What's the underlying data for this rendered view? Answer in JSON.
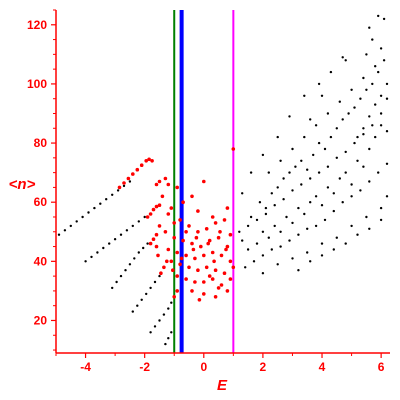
{
  "chart_data": {
    "type": "scatter",
    "xlabel": "E",
    "ylabel": "<n>",
    "xlim": [
      -5,
      6.3
    ],
    "ylim": [
      9,
      125
    ],
    "xticks": [
      -4,
      -2,
      0,
      2,
      4,
      6
    ],
    "yticks": [
      20,
      40,
      60,
      80,
      100,
      120
    ],
    "grid": false,
    "label_color": "#ff0000",
    "axis_color": "#ff0000",
    "vertical_lines": [
      {
        "x": -1.0,
        "color": "#008000",
        "width": 2
      },
      {
        "x": -0.75,
        "color": "#0000ff",
        "width": 4
      },
      {
        "x": 1.0,
        "color": "#ff00ff",
        "width": 2
      }
    ],
    "series": [
      {
        "color": "#000000",
        "marker_size": 1.2,
        "points": [
          [
            -4.9,
            49
          ],
          [
            -4.7,
            50.5
          ],
          [
            -4.5,
            52
          ],
          [
            -4.3,
            53.5
          ],
          [
            -4.1,
            55
          ],
          [
            -3.9,
            56.5
          ],
          [
            -3.7,
            58
          ],
          [
            -3.5,
            59.5
          ],
          [
            -3.3,
            61
          ],
          [
            -3.1,
            62.5
          ],
          [
            -2.9,
            64
          ],
          [
            -2.7,
            65.5
          ],
          [
            -2.5,
            67
          ],
          [
            -4.0,
            40
          ],
          [
            -3.8,
            41.5
          ],
          [
            -3.6,
            43
          ],
          [
            -3.4,
            44.5
          ],
          [
            -3.2,
            46
          ],
          [
            -3.0,
            47.5
          ],
          [
            -2.8,
            49
          ],
          [
            -2.6,
            50.5
          ],
          [
            -2.4,
            52
          ],
          [
            -2.2,
            53.5
          ],
          [
            -2.0,
            55
          ],
          [
            -3.1,
            31
          ],
          [
            -2.95,
            33
          ],
          [
            -2.8,
            35
          ],
          [
            -2.65,
            37
          ],
          [
            -2.5,
            39
          ],
          [
            -2.35,
            41
          ],
          [
            -2.2,
            43
          ],
          [
            -2.05,
            44.5
          ],
          [
            -1.9,
            46
          ],
          [
            -2.4,
            23
          ],
          [
            -2.25,
            25
          ],
          [
            -2.1,
            27
          ],
          [
            -1.95,
            29
          ],
          [
            -1.8,
            31
          ],
          [
            -1.65,
            33
          ],
          [
            -1.5,
            35
          ],
          [
            -1.8,
            16
          ],
          [
            -1.65,
            18
          ],
          [
            -1.5,
            20
          ],
          [
            -1.35,
            22
          ],
          [
            -1.2,
            24
          ],
          [
            -1.1,
            26
          ],
          [
            -1.3,
            12
          ],
          [
            -1.2,
            14
          ],
          [
            -1.1,
            16
          ],
          [
            1.5,
            44
          ],
          [
            1.8,
            46
          ],
          [
            2.0,
            50
          ],
          [
            2.2,
            48
          ],
          [
            2.4,
            52
          ],
          [
            2.6,
            50
          ],
          [
            2.8,
            55
          ],
          [
            3.0,
            53
          ],
          [
            3.2,
            58
          ],
          [
            3.4,
            56
          ],
          [
            3.6,
            60
          ],
          [
            3.8,
            62
          ],
          [
            4.0,
            59
          ],
          [
            4.2,
            65
          ],
          [
            4.4,
            63
          ],
          [
            4.6,
            68
          ],
          [
            4.8,
            70
          ],
          [
            5.0,
            66
          ],
          [
            5.2,
            74
          ],
          [
            5.4,
            72
          ],
          [
            5.6,
            78
          ],
          [
            5.8,
            82
          ],
          [
            6.0,
            86
          ],
          [
            6.2,
            84
          ],
          [
            1.6,
            55
          ],
          [
            1.9,
            60
          ],
          [
            2.1,
            58
          ],
          [
            2.3,
            63
          ],
          [
            2.5,
            65
          ],
          [
            2.7,
            68
          ],
          [
            2.9,
            70
          ],
          [
            3.1,
            72
          ],
          [
            3.3,
            74
          ],
          [
            3.5,
            71
          ],
          [
            3.7,
            76
          ],
          [
            3.9,
            80
          ],
          [
            4.1,
            78
          ],
          [
            4.3,
            82
          ],
          [
            4.5,
            85
          ],
          [
            4.7,
            88
          ],
          [
            4.9,
            90
          ],
          [
            5.1,
            92
          ],
          [
            5.3,
            95
          ],
          [
            5.5,
            98
          ],
          [
            5.7,
            100
          ],
          [
            5.9,
            104
          ],
          [
            6.1,
            108
          ],
          [
            1.4,
            38
          ],
          [
            1.7,
            40
          ],
          [
            2.0,
            42
          ],
          [
            2.3,
            44
          ],
          [
            2.6,
            45
          ],
          [
            2.9,
            47
          ],
          [
            3.2,
            49
          ],
          [
            3.5,
            51
          ],
          [
            3.8,
            52
          ],
          [
            4.1,
            54
          ],
          [
            4.4,
            57
          ],
          [
            4.7,
            60
          ],
          [
            5.0,
            62
          ],
          [
            5.3,
            64
          ],
          [
            5.6,
            67
          ],
          [
            5.9,
            70
          ],
          [
            6.2,
            73
          ],
          [
            2.2,
            70
          ],
          [
            2.6,
            74
          ],
          [
            3.0,
            78
          ],
          [
            3.4,
            82
          ],
          [
            3.8,
            86
          ],
          [
            4.2,
            90
          ],
          [
            4.6,
            94
          ],
          [
            5.0,
            98
          ],
          [
            5.4,
            102
          ],
          [
            5.8,
            106
          ],
          [
            6.0,
            112
          ],
          [
            5.7,
            115
          ],
          [
            5.5,
            110
          ],
          [
            4.8,
            108
          ],
          [
            4.0,
            96
          ],
          [
            3.6,
            88
          ],
          [
            2.0,
            36
          ],
          [
            2.5,
            39
          ],
          [
            3.0,
            41
          ],
          [
            3.5,
            43
          ],
          [
            4.0,
            46
          ],
          [
            4.5,
            48
          ],
          [
            5.0,
            52
          ],
          [
            5.5,
            55
          ],
          [
            6.0,
            58
          ],
          [
            1.2,
            50
          ],
          [
            1.3,
            47
          ],
          [
            1.5,
            52
          ],
          [
            1.8,
            54
          ],
          [
            2.1,
            56
          ],
          [
            2.4,
            59
          ],
          [
            2.7,
            61
          ],
          [
            3.0,
            64
          ],
          [
            3.3,
            66
          ],
          [
            3.6,
            68
          ],
          [
            3.9,
            70
          ],
          [
            4.2,
            72
          ],
          [
            4.5,
            75
          ],
          [
            4.8,
            77
          ],
          [
            5.1,
            80
          ],
          [
            5.4,
            83
          ],
          [
            5.7,
            86
          ],
          [
            6.0,
            90
          ],
          [
            5.9,
            123
          ],
          [
            6.1,
            122
          ],
          [
            5.6,
            119
          ],
          [
            4.7,
            109
          ],
          [
            4.3,
            104
          ],
          [
            3.9,
            100
          ],
          [
            3.4,
            96
          ],
          [
            2.9,
            89
          ],
          [
            2.5,
            82
          ],
          [
            2.0,
            76
          ],
          [
            1.6,
            70
          ],
          [
            1.3,
            63
          ],
          [
            3.2,
            37
          ],
          [
            3.6,
            40
          ],
          [
            4.0,
            42
          ],
          [
            4.4,
            44
          ],
          [
            4.8,
            46
          ],
          [
            5.2,
            49
          ],
          [
            5.6,
            51
          ],
          [
            6.0,
            54
          ],
          [
            6.2,
            62
          ],
          [
            6.2,
            95
          ],
          [
            6.2,
            100
          ],
          [
            6.0,
            96
          ],
          [
            5.8,
            93
          ],
          [
            5.6,
            89
          ],
          [
            5.4,
            85
          ],
          [
            5.2,
            82
          ]
        ]
      },
      {
        "color": "#ff0000",
        "marker_size": 1.8,
        "points": [
          [
            -2.85,
            65
          ],
          [
            -2.7,
            66.5
          ],
          [
            -2.55,
            68
          ],
          [
            -2.4,
            69.5
          ],
          [
            -2.25,
            71
          ],
          [
            -2.1,
            72.5
          ],
          [
            -1.95,
            74
          ],
          [
            -1.85,
            74.5
          ],
          [
            -1.75,
            74
          ],
          [
            -1.9,
            55
          ],
          [
            -1.8,
            56
          ],
          [
            -1.7,
            57.5
          ],
          [
            -1.6,
            58.5
          ],
          [
            -1.5,
            59
          ],
          [
            -1.8,
            46
          ],
          [
            -1.7,
            47.5
          ],
          [
            -1.6,
            49
          ],
          [
            -1.45,
            36
          ],
          [
            -1.35,
            38
          ],
          [
            -1.25,
            40
          ],
          [
            -1.0,
            28
          ],
          [
            -0.9,
            30
          ],
          [
            -1.6,
            66
          ],
          [
            -1.5,
            67
          ],
          [
            -1.3,
            68
          ],
          [
            -1.2,
            66
          ],
          [
            -0.9,
            65
          ],
          [
            0.0,
            67
          ],
          [
            -0.4,
            62
          ],
          [
            -0.7,
            60
          ],
          [
            -1.1,
            58
          ],
          [
            -0.2,
            57
          ],
          [
            0.3,
            55
          ],
          [
            0.8,
            58
          ],
          [
            1.0,
            78
          ],
          [
            -1.4,
            62
          ],
          [
            -1.2,
            56
          ],
          [
            -0.8,
            54
          ],
          [
            -0.5,
            52
          ],
          [
            -0.2,
            50
          ],
          [
            0.1,
            51
          ],
          [
            0.4,
            53
          ],
          [
            0.7,
            54
          ],
          [
            0.9,
            49
          ],
          [
            -1.3,
            50
          ],
          [
            -1.0,
            48
          ],
          [
            -0.7,
            47
          ],
          [
            -0.4,
            46
          ],
          [
            -0.1,
            45
          ],
          [
            0.2,
            47
          ],
          [
            0.5,
            48
          ],
          [
            0.8,
            45
          ],
          [
            -1.2,
            44
          ],
          [
            -0.9,
            43
          ],
          [
            -0.6,
            42
          ],
          [
            -0.3,
            41
          ],
          [
            0.0,
            42
          ],
          [
            0.3,
            43
          ],
          [
            0.6,
            42
          ],
          [
            0.9,
            40
          ],
          [
            -1.1,
            40
          ],
          [
            -0.8,
            39
          ],
          [
            -0.5,
            38
          ],
          [
            -0.2,
            37
          ],
          [
            0.1,
            38
          ],
          [
            0.4,
            37
          ],
          [
            0.7,
            36
          ],
          [
            1.0,
            38
          ],
          [
            -0.9,
            35
          ],
          [
            -0.6,
            34
          ],
          [
            -0.3,
            33
          ],
          [
            0.0,
            33
          ],
          [
            0.3,
            34
          ],
          [
            0.6,
            32
          ],
          [
            0.9,
            34
          ],
          [
            -0.4,
            30
          ],
          [
            0.0,
            29
          ],
          [
            0.4,
            28
          ],
          [
            0.8,
            30
          ],
          [
            -1.5,
            52
          ],
          [
            -1.55,
            42
          ],
          [
            -1.6,
            45
          ],
          [
            -1.0,
            53
          ],
          [
            -0.6,
            50
          ],
          [
            -0.25,
            48
          ],
          [
            0.15,
            46
          ],
          [
            0.55,
            50
          ],
          [
            0.35,
            40
          ],
          [
            0.75,
            44
          ],
          [
            -0.35,
            44
          ],
          [
            -0.75,
            41
          ],
          [
            -1.05,
            37
          ],
          [
            0.2,
            35
          ],
          [
            0.5,
            31
          ],
          [
            -0.15,
            27
          ]
        ]
      }
    ]
  }
}
